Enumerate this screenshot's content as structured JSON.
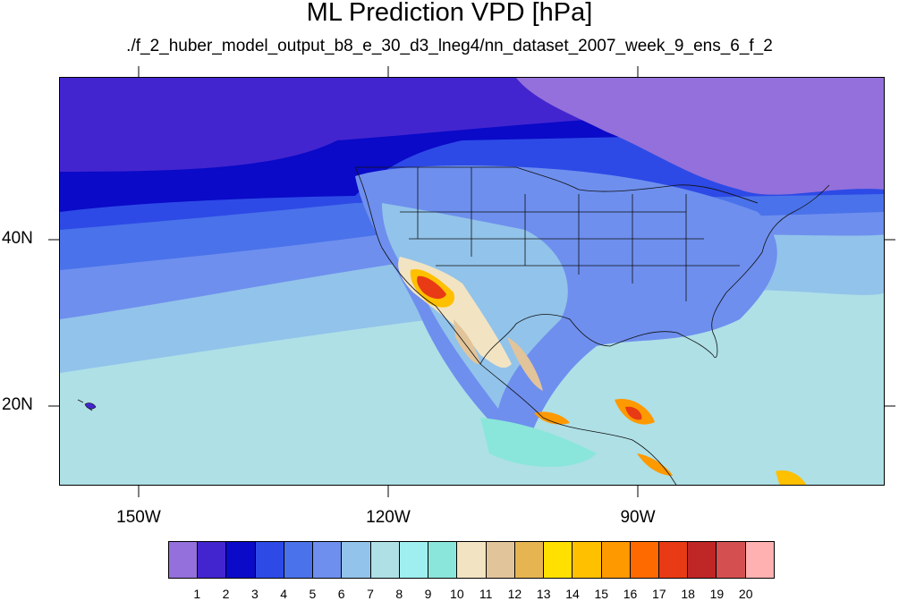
{
  "title": "ML Prediction VPD [hPa]",
  "subtitle": "./f_2_huber_model_output_b8_e_30_d3_lneg4/nn_dataset_2007_week_9_ens_6_f_2",
  "map": {
    "lat_labels": [
      "40N",
      "20N"
    ],
    "lon_labels": [
      "150W",
      "120W",
      "90W"
    ]
  },
  "colorbar": {
    "labels": [
      "1",
      "2",
      "3",
      "4",
      "5",
      "6",
      "7",
      "8",
      "9",
      "10",
      "11",
      "12",
      "13",
      "14",
      "15",
      "16",
      "17",
      "18",
      "19",
      "20"
    ],
    "colors": [
      "#9370db",
      "#4325cf",
      "#0a0ac8",
      "#2d4ae6",
      "#4a72ea",
      "#6e8fee",
      "#92c3ea",
      "#aee0e6",
      "#9feef0",
      "#8ae6da",
      "#f2e4c2",
      "#e2c49a",
      "#e6b450",
      "#ffe000",
      "#ffc000",
      "#ff9900",
      "#ff6a00",
      "#e83a14",
      "#bf2626",
      "#d45050",
      "#ffb0b0"
    ]
  }
}
